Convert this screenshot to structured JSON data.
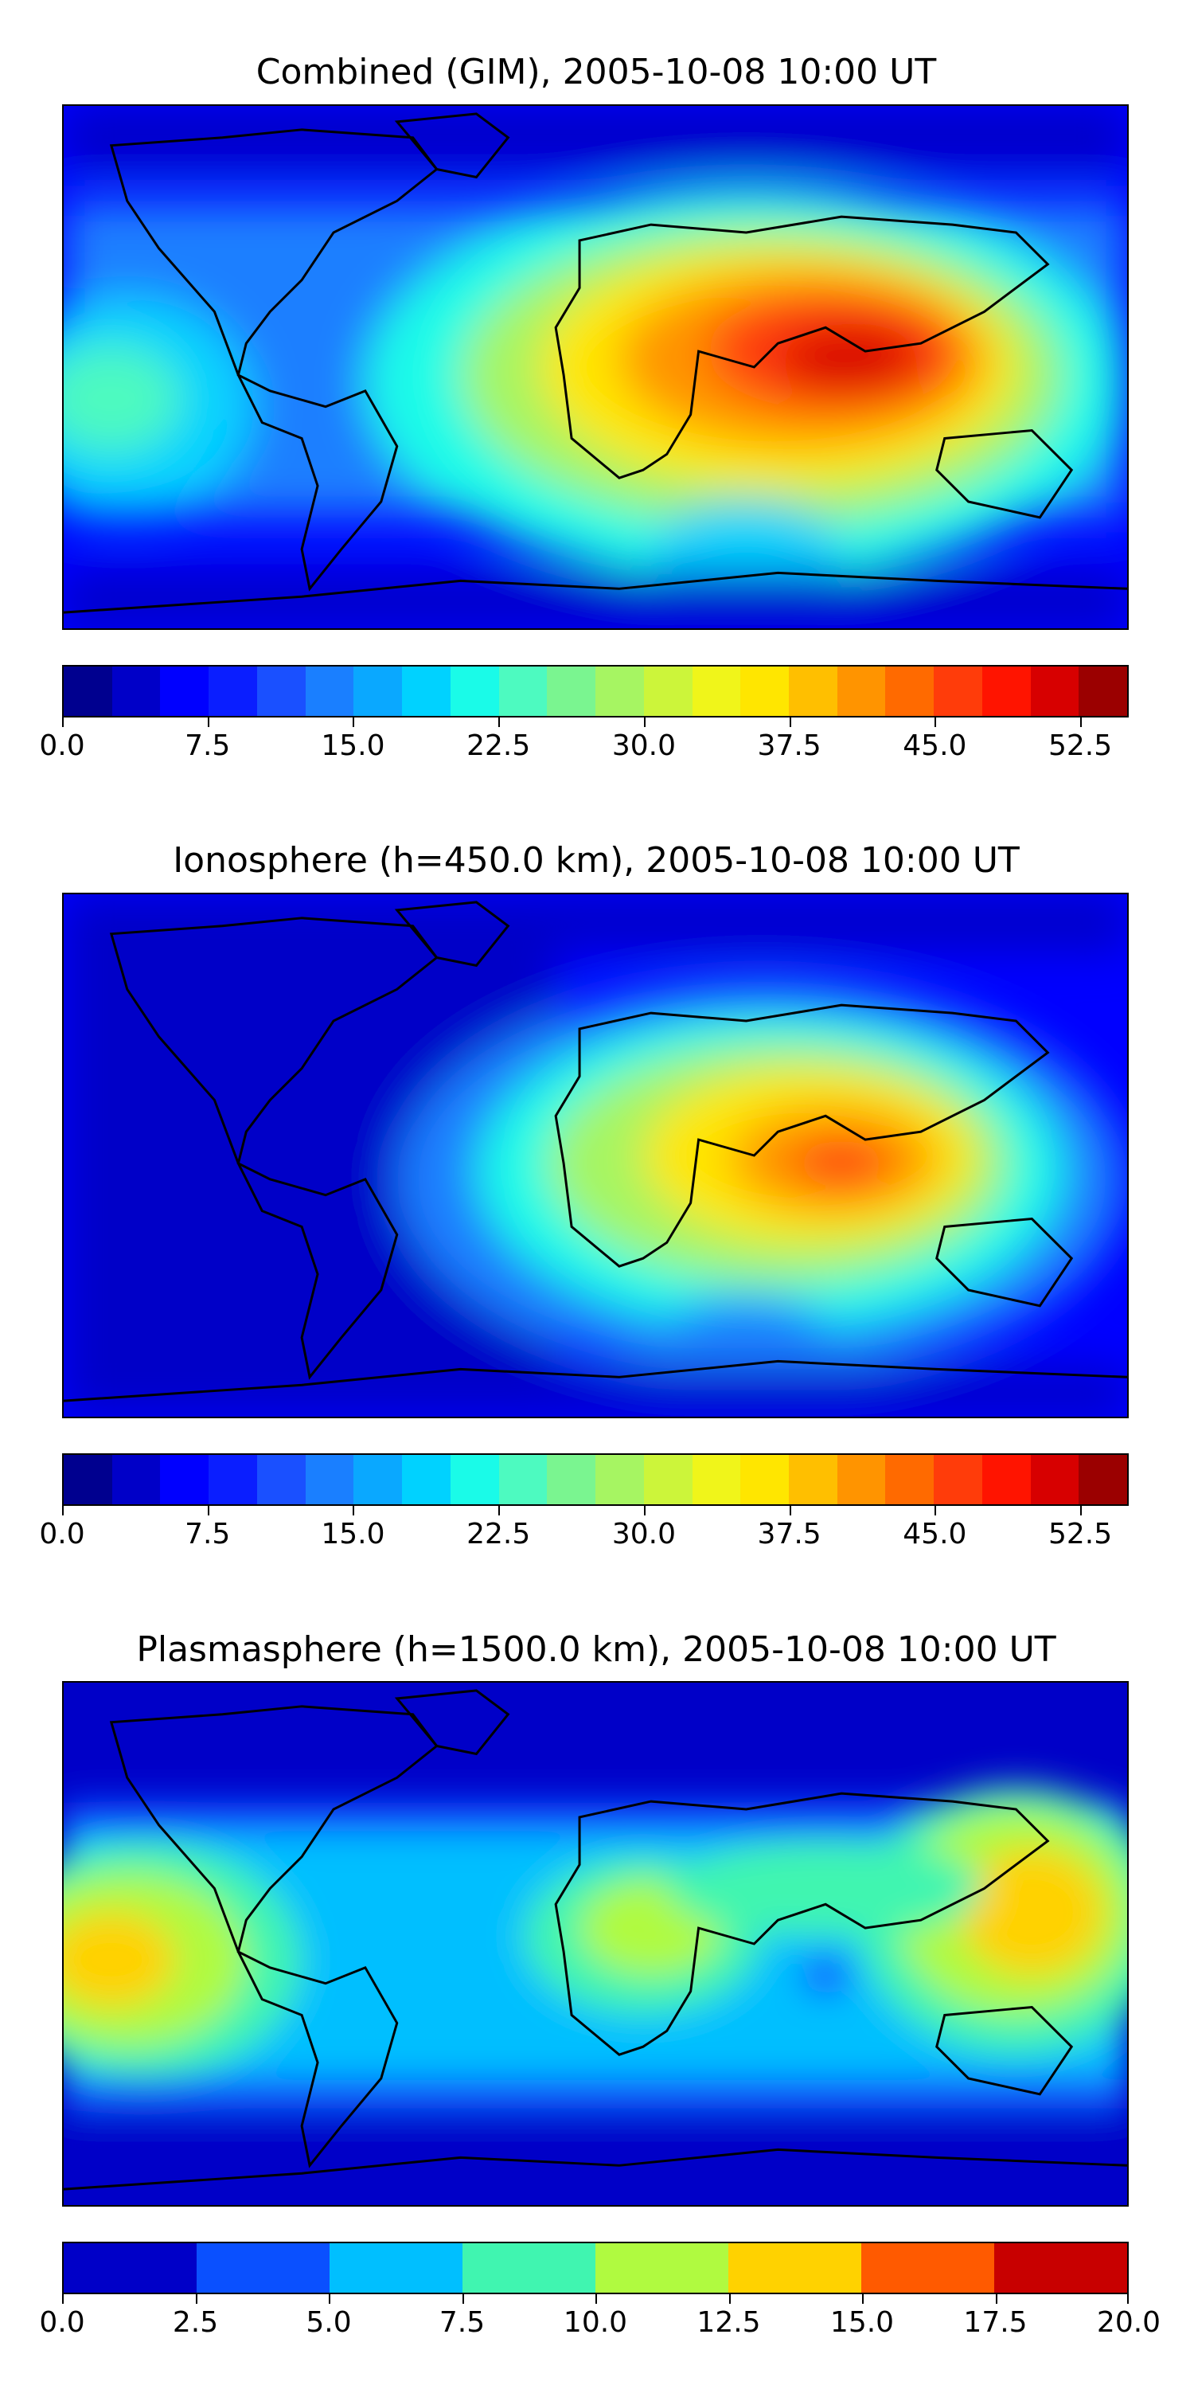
{
  "panels": [
    {
      "title": "Combined (GIM), 2005-10-08 10:00 UT",
      "colors": [
        "#00008f",
        "#0000c8",
        "#0000ff",
        "#0a1eff",
        "#1a50ff",
        "#1a7fff",
        "#0aa8ff",
        "#00d2ff",
        "#1afbe8",
        "#4dfac0",
        "#7af590",
        "#a6f562",
        "#ccf53a",
        "#f0f51a",
        "#ffe600",
        "#ffbf00",
        "#ff9400",
        "#ff6a00",
        "#ff3c0a",
        "#ff1400",
        "#d70000",
        "#9b0000"
      ],
      "tick_labels": [
        "0.0",
        "7.5",
        "15.0",
        "22.5",
        "30.0",
        "37.5",
        "45.0",
        "52.5"
      ],
      "tick_values": [
        0,
        7.5,
        15,
        22.5,
        30,
        37.5,
        45,
        52.5
      ],
      "range": [
        0,
        55
      ]
    },
    {
      "title": "Ionosphere  (h=450.0 km), 2005-10-08 10:00 UT",
      "colors": [
        "#00008f",
        "#0000c8",
        "#0000ff",
        "#0a1eff",
        "#1a50ff",
        "#1a7fff",
        "#0aa8ff",
        "#00d2ff",
        "#1afbe8",
        "#4dfac0",
        "#7af590",
        "#a6f562",
        "#ccf53a",
        "#f0f51a",
        "#ffe600",
        "#ffbf00",
        "#ff9400",
        "#ff6a00",
        "#ff3c0a",
        "#ff1400",
        "#d70000",
        "#9b0000"
      ],
      "tick_labels": [
        "0.0",
        "7.5",
        "15.0",
        "22.5",
        "30.0",
        "37.5",
        "45.0",
        "52.5"
      ],
      "tick_values": [
        0,
        7.5,
        15,
        22.5,
        30,
        37.5,
        45,
        52.5
      ],
      "range": [
        0,
        55
      ]
    },
    {
      "title": "Plasmasphere (h=1500.0 km), 2005-10-08 10:00 UT",
      "colors": [
        "#0000c8",
        "#0a50ff",
        "#00bfff",
        "#40f5b0",
        "#b0fa40",
        "#ffd200",
        "#ff5a00",
        "#c80000"
      ],
      "tick_labels": [
        "0.0",
        "2.5",
        "5.0",
        "7.5",
        "10.0",
        "12.5",
        "15.0",
        "17.5",
        "20.0"
      ],
      "tick_values": [
        0,
        2.5,
        5,
        7.5,
        10,
        12.5,
        15,
        17.5,
        20
      ],
      "range": [
        0,
        20
      ]
    }
  ]
}
